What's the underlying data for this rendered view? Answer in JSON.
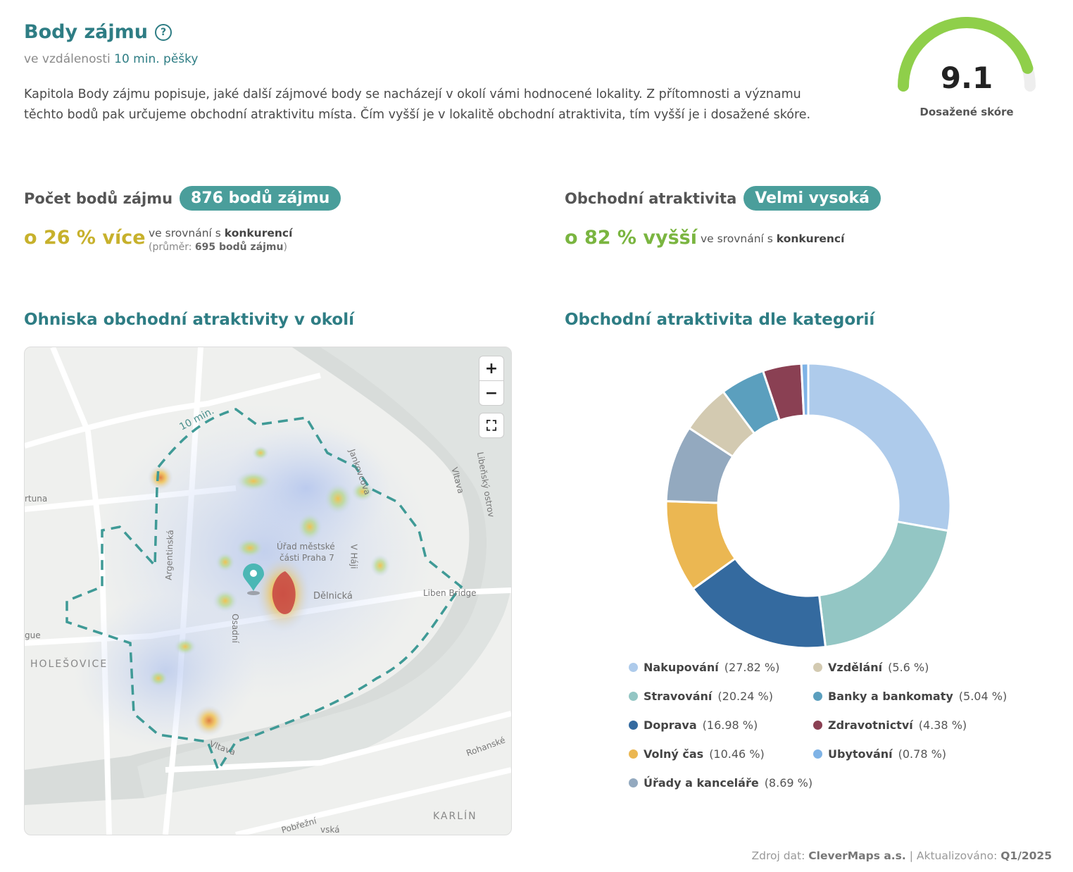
{
  "header": {
    "title": "Body zájmu",
    "help_icon": "?",
    "subtitle_prefix": "ve vzdálenosti",
    "subtitle_value": "10 min. pěšky",
    "description": "Kapitola Body zájmu popisuje, jaké další zájmové body se nacházejí v okolí vámi hodnocené lokality. Z přítomnosti a významu těchto bodů pak určujeme obchodní atraktivitu místa. Čím vyšší je v lokalitě obchodní atraktivita, tím vyšší je i dosažené skóre."
  },
  "score": {
    "value": "9.1",
    "label": "Dosažené skóre",
    "fraction": 0.91,
    "color": "#8fcf4a"
  },
  "kpi_count": {
    "label": "Počet bodů zájmu",
    "pill": "876 bodů zájmu",
    "delta": "o 26 % více",
    "cmp_text": "ve srovnání s",
    "cmp_bold": "konkurencí",
    "avg_prefix": "(průměr:",
    "avg_value": "695 bodů zájmu",
    "avg_suffix": ")"
  },
  "kpi_attr": {
    "label": "Obchodní atraktivita",
    "pill": "Velmi vysoká",
    "delta": "o 82 % vyšší",
    "cmp_text": "ve srovnání s",
    "cmp_bold": "konkurencí"
  },
  "map_section": {
    "title": "Ohniska obchodní atraktivity v okolí",
    "zoom_in": "+",
    "zoom_out": "−",
    "fullscreen_icon": "⛶",
    "labels": {
      "ten_min": "10 min.",
      "jankovcova": "Jankovcova",
      "vltava1": "Vltava",
      "libensky": "Libeňský ostrov",
      "artuna": "rtuna",
      "argentinska": "Argentinská",
      "urad1": "Úřad městské",
      "urad2": "části Praha 7",
      "vhaji": "V Háji",
      "liben_bridge": "Liben Bridge",
      "delnicka": "Dělnická",
      "osadni": "Osadní",
      "gue": "gue",
      "holesovice": "HOLEŠOVICE",
      "vltava2": "Vltava",
      "rohanske": "Rohanské",
      "karlin": "KARLÍN",
      "pobrezni": "Pobřežní",
      "vska": "vská"
    }
  },
  "chart_section": {
    "title": "Obchodní atraktivita dle kategorií"
  },
  "chart_data": {
    "type": "pie",
    "donut": true,
    "categories": [
      "Nakupování",
      "Stravování",
      "Doprava",
      "Volný čas",
      "Úřady a kanceláře",
      "Vzdělání",
      "Banky a bankomaty",
      "Zdravotnictví",
      "Ubytování"
    ],
    "values": [
      27.82,
      20.24,
      16.98,
      10.46,
      8.69,
      5.6,
      5.04,
      4.38,
      0.78
    ],
    "value_labels": [
      "(27.82 %)",
      "(20.24 %)",
      "(16.98 %)",
      "(10.46 %)",
      "(8.69 %)",
      "(5.6 %)",
      "(5.04 %)",
      "(4.38 %)",
      "(0.78 %)"
    ],
    "colors": [
      "#aecbeb",
      "#93c6c4",
      "#346a9f",
      "#ebb752",
      "#93a9bf",
      "#d3cab1",
      "#5b9fbe",
      "#8a4053",
      "#7fb3e6"
    ]
  },
  "footer": {
    "source_prefix": "Zdroj dat:",
    "source": "CleverMaps a.s.",
    "sep": "| Aktualizováno:",
    "updated": "Q1/2025"
  }
}
